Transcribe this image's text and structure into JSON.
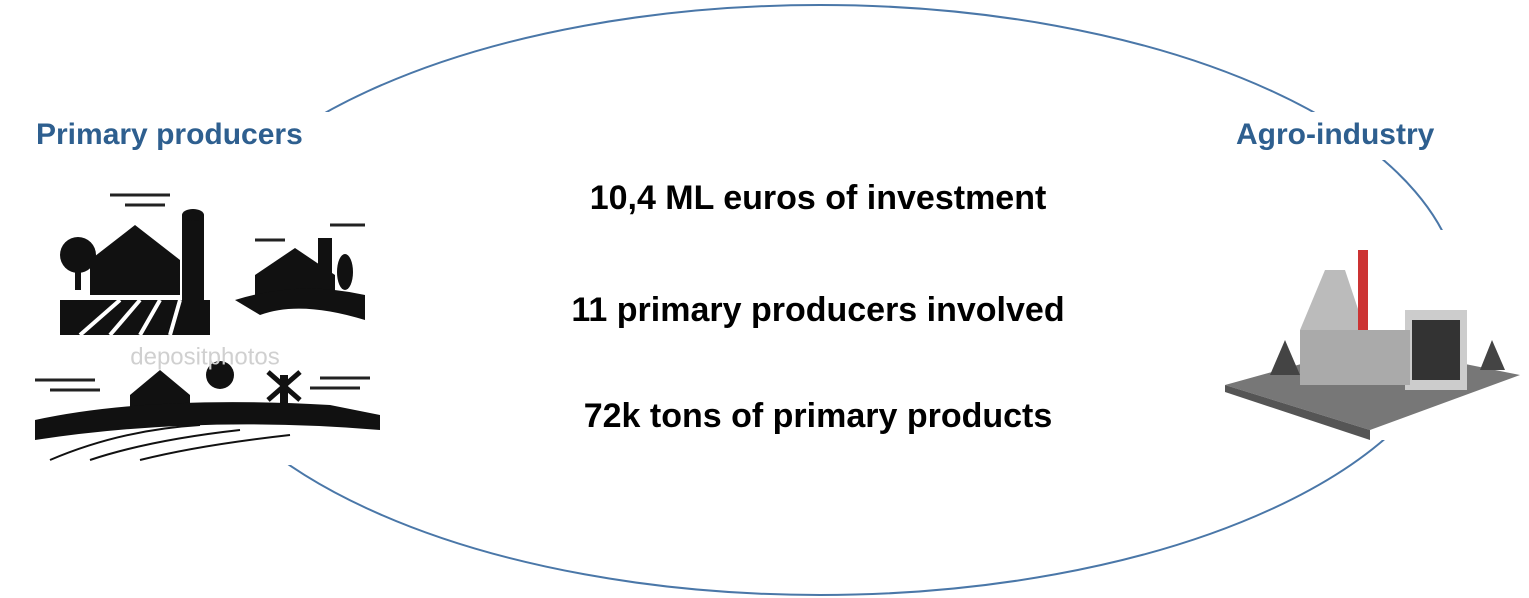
{
  "left_label": "Primary producers",
  "right_label": "Agro-industry",
  "stats": [
    "10,4 ML euros of investment",
    "11 primary producers involved",
    "72k tons of primary products"
  ],
  "watermark": "depositphotos"
}
